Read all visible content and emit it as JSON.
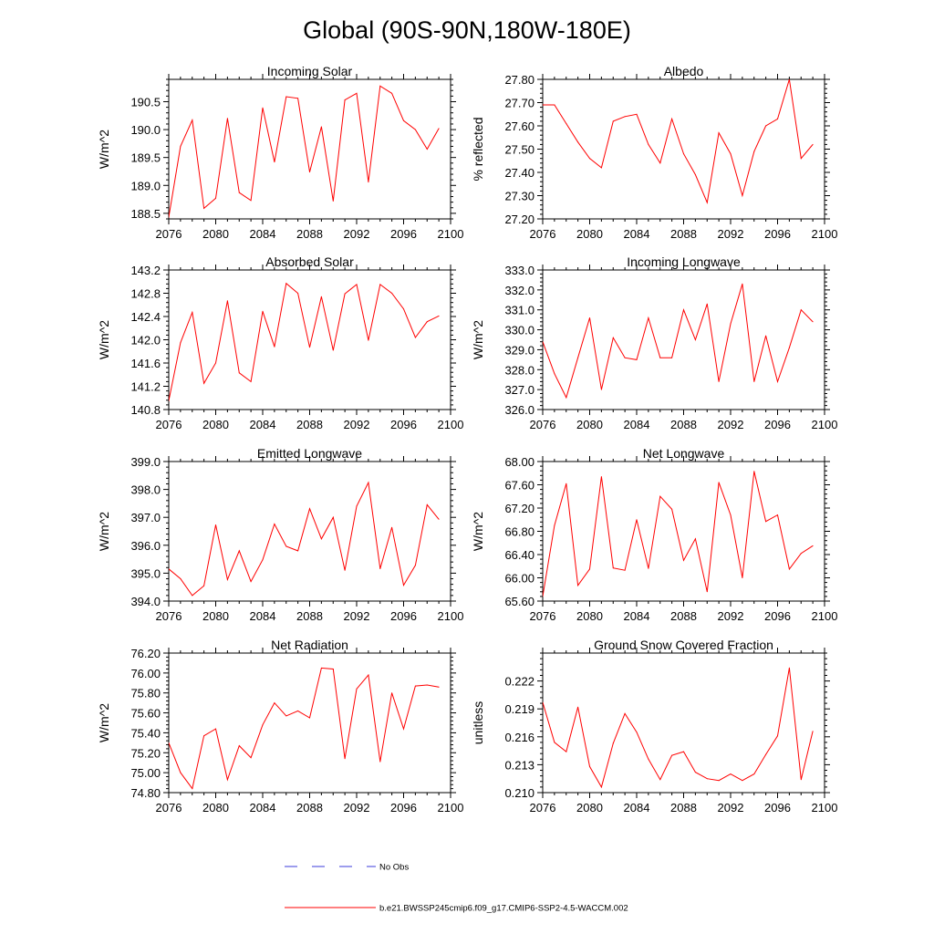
{
  "page_title": "Global (90S-90N,180W-180E)",
  "colors": {
    "model": "#ff0000",
    "obs": "#3b3bdb",
    "axis": "#000000"
  },
  "chart_data": [
    {
      "type": "line",
      "title": "Incoming Solar",
      "ylabel": "W/m^2",
      "xlabel": "",
      "xlim": [
        2076,
        2100
      ],
      "ylim": [
        188.4,
        190.9
      ],
      "xticks": [
        "2076",
        "2080",
        "2084",
        "2088",
        "2092",
        "2096",
        "2100"
      ],
      "yticks": [
        "188.5",
        "189.0",
        "189.5",
        "190.0",
        "190.5"
      ],
      "x": [
        2076,
        2077,
        2078,
        2079,
        2080,
        2081,
        2082,
        2083,
        2084,
        2085,
        2086,
        2087,
        2088,
        2089,
        2090,
        2091,
        2092,
        2093,
        2094,
        2095,
        2096,
        2097,
        2098,
        2099
      ],
      "values": [
        188.43,
        189.7,
        190.17,
        188.59,
        188.77,
        190.2,
        188.87,
        188.73,
        190.39,
        189.42,
        190.59,
        190.56,
        189.24,
        190.05,
        188.72,
        190.53,
        190.65,
        189.06,
        190.78,
        190.65,
        190.16,
        190.0,
        189.65,
        190.02
      ]
    },
    {
      "type": "line",
      "title": "Albedo",
      "ylabel": "% reflected",
      "xlabel": "",
      "xlim": [
        2076,
        2100
      ],
      "ylim": [
        27.2,
        27.8
      ],
      "xticks": [
        "2076",
        "2080",
        "2084",
        "2088",
        "2092",
        "2096",
        "2100"
      ],
      "yticks": [
        "27.20",
        "27.30",
        "27.40",
        "27.50",
        "27.60",
        "27.70",
        "27.80"
      ],
      "x": [
        2076,
        2077,
        2078,
        2079,
        2080,
        2081,
        2082,
        2083,
        2084,
        2085,
        2086,
        2087,
        2088,
        2089,
        2090,
        2091,
        2092,
        2093,
        2094,
        2095,
        2096,
        2097,
        2098,
        2099
      ],
      "values": [
        27.69,
        27.69,
        27.61,
        27.53,
        27.46,
        27.42,
        27.62,
        27.64,
        27.65,
        27.52,
        27.44,
        27.63,
        27.48,
        27.39,
        27.27,
        27.57,
        27.48,
        27.3,
        27.49,
        27.6,
        27.63,
        27.8,
        27.46,
        27.52
      ]
    },
    {
      "type": "line",
      "title": "Absorbed Solar",
      "ylabel": "W/m^2",
      "xlabel": "",
      "xlim": [
        2076,
        2100
      ],
      "ylim": [
        140.8,
        143.2
      ],
      "xticks": [
        "2076",
        "2080",
        "2084",
        "2088",
        "2092",
        "2096",
        "2100"
      ],
      "yticks": [
        "140.8",
        "141.2",
        "141.6",
        "142.0",
        "142.4",
        "142.8",
        "143.2"
      ],
      "x": [
        2076,
        2077,
        2078,
        2079,
        2080,
        2081,
        2082,
        2083,
        2084,
        2085,
        2086,
        2087,
        2088,
        2089,
        2090,
        2091,
        2092,
        2093,
        2094,
        2095,
        2096,
        2097,
        2098,
        2099
      ],
      "values": [
        140.95,
        141.95,
        142.47,
        141.25,
        141.6,
        142.67,
        141.43,
        141.28,
        142.49,
        141.88,
        142.97,
        142.8,
        141.87,
        142.74,
        141.82,
        142.79,
        142.95,
        141.99,
        142.95,
        142.8,
        142.53,
        142.04,
        142.31,
        142.41
      ]
    },
    {
      "type": "line",
      "title": "Incoming Longwave",
      "ylabel": "W/m^2",
      "xlabel": "",
      "xlim": [
        2076,
        2100
      ],
      "ylim": [
        326.0,
        333.0
      ],
      "xticks": [
        "2076",
        "2080",
        "2084",
        "2088",
        "2092",
        "2096",
        "2100"
      ],
      "yticks": [
        "326.0",
        "327.0",
        "328.0",
        "329.0",
        "330.0",
        "331.0",
        "332.0",
        "333.0"
      ],
      "x": [
        2076,
        2077,
        2078,
        2079,
        2080,
        2081,
        2082,
        2083,
        2084,
        2085,
        2086,
        2087,
        2088,
        2089,
        2090,
        2091,
        2092,
        2093,
        2094,
        2095,
        2096,
        2097,
        2098,
        2099
      ],
      "values": [
        329.4,
        327.8,
        326.6,
        328.6,
        330.6,
        327.0,
        329.6,
        328.6,
        328.5,
        330.6,
        328.6,
        328.6,
        331.0,
        329.5,
        331.3,
        327.4,
        330.3,
        332.3,
        327.4,
        329.7,
        327.4,
        329.1,
        331.0,
        330.4
      ]
    },
    {
      "type": "line",
      "title": "Emitted Longwave",
      "ylabel": "W/m^2",
      "xlabel": "",
      "xlim": [
        2076,
        2100
      ],
      "ylim": [
        394.0,
        399.0
      ],
      "xticks": [
        "2076",
        "2080",
        "2084",
        "2088",
        "2092",
        "2096",
        "2100"
      ],
      "yticks": [
        "394.0",
        "395.0",
        "396.0",
        "397.0",
        "398.0",
        "399.0"
      ],
      "x": [
        2076,
        2077,
        2078,
        2079,
        2080,
        2081,
        2082,
        2083,
        2084,
        2085,
        2086,
        2087,
        2088,
        2089,
        2090,
        2091,
        2092,
        2093,
        2094,
        2095,
        2096,
        2097,
        2098,
        2099
      ],
      "values": [
        395.15,
        394.8,
        394.2,
        394.55,
        396.73,
        394.77,
        395.8,
        394.7,
        395.48,
        396.76,
        395.96,
        395.8,
        397.31,
        396.23,
        397.0,
        395.1,
        397.4,
        398.25,
        395.16,
        396.64,
        394.57,
        395.28,
        397.45,
        396.93
      ]
    },
    {
      "type": "line",
      "title": "Net Longwave",
      "ylabel": "W/m^2",
      "xlabel": "",
      "xlim": [
        2076,
        2100
      ],
      "ylim": [
        65.6,
        68.0
      ],
      "xticks": [
        "2076",
        "2080",
        "2084",
        "2088",
        "2092",
        "2096",
        "2100"
      ],
      "yticks": [
        "65.60",
        "66.00",
        "66.40",
        "66.80",
        "67.20",
        "67.60",
        "68.00"
      ],
      "x": [
        2076,
        2077,
        2078,
        2079,
        2080,
        2081,
        2082,
        2083,
        2084,
        2085,
        2086,
        2087,
        2088,
        2089,
        2090,
        2091,
        2092,
        2093,
        2094,
        2095,
        2096,
        2097,
        2098,
        2099
      ],
      "values": [
        65.68,
        66.9,
        67.62,
        65.87,
        66.15,
        67.74,
        66.17,
        66.13,
        67.0,
        66.16,
        67.4,
        67.18,
        66.3,
        66.67,
        65.76,
        67.64,
        67.08,
        66.0,
        67.83,
        66.97,
        67.08,
        66.15,
        66.42,
        66.55
      ]
    },
    {
      "type": "line",
      "title": "Net Radiation",
      "ylabel": "W/m^2",
      "xlabel": "",
      "xlim": [
        2076,
        2100
      ],
      "ylim": [
        74.8,
        76.2
      ],
      "xticks": [
        "2076",
        "2080",
        "2084",
        "2088",
        "2092",
        "2096",
        "2100"
      ],
      "yticks": [
        "74.80",
        "75.00",
        "75.20",
        "75.40",
        "75.60",
        "75.80",
        "76.00",
        "76.20"
      ],
      "x": [
        2076,
        2077,
        2078,
        2079,
        2080,
        2081,
        2082,
        2083,
        2084,
        2085,
        2086,
        2087,
        2088,
        2089,
        2090,
        2091,
        2092,
        2093,
        2094,
        2095,
        2096,
        2097,
        2098,
        2099
      ],
      "values": [
        75.3,
        75.0,
        74.84,
        75.37,
        75.44,
        74.93,
        75.27,
        75.15,
        75.48,
        75.7,
        75.57,
        75.62,
        75.55,
        76.05,
        76.04,
        75.14,
        75.84,
        75.98,
        75.11,
        75.8,
        75.44,
        75.87,
        75.88,
        75.86
      ]
    },
    {
      "type": "line",
      "title": "Ground Snow Covered Fraction",
      "ylabel": "unitless",
      "xlabel": "",
      "xlim": [
        2076,
        2100
      ],
      "ylim": [
        0.21,
        0.225
      ],
      "xticks": [
        "2076",
        "2080",
        "2084",
        "2088",
        "2092",
        "2096",
        "2100"
      ],
      "yticks": [
        "0.210",
        "0.213",
        "0.216",
        "0.219",
        "0.222"
      ],
      "x": [
        2076,
        2077,
        2078,
        2079,
        2080,
        2081,
        2082,
        2083,
        2084,
        2085,
        2086,
        2087,
        2088,
        2089,
        2090,
        2091,
        2092,
        2093,
        2094,
        2095,
        2096,
        2097,
        2098,
        2099
      ],
      "values": [
        0.2197,
        0.2154,
        0.2144,
        0.2192,
        0.2128,
        0.2106,
        0.2153,
        0.2185,
        0.2165,
        0.2136,
        0.2114,
        0.214,
        0.2144,
        0.2122,
        0.2115,
        0.2113,
        0.212,
        0.2113,
        0.212,
        0.2141,
        0.2161,
        0.2234,
        0.2114,
        0.2166
      ]
    }
  ],
  "legend": [
    {
      "label": "No Obs",
      "style": "dashed"
    },
    {
      "label": "b.e21.BWSSP245cmip6.f09_g17.CMIP6-SSP2-4.5-WACCM.002",
      "style": "solid"
    }
  ]
}
